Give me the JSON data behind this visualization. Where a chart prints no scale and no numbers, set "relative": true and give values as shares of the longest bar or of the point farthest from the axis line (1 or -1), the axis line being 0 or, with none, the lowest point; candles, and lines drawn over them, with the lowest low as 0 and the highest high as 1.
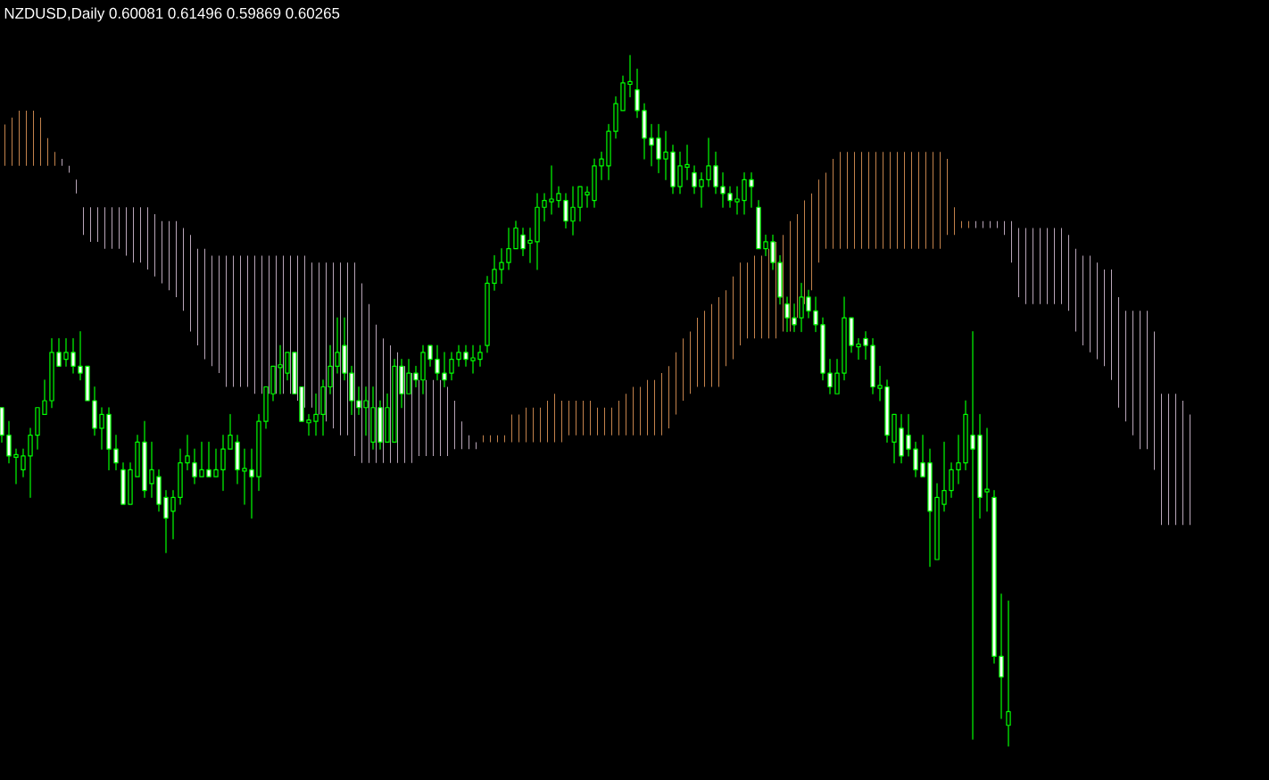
{
  "chart_data": {
    "type": "candlestick",
    "title": "NZDUSD,Daily  0.60081 0.61496 0.59869 0.60265",
    "relative": true,
    "categories": [
      null,
      null,
      null,
      null,
      null,
      null,
      null,
      null,
      null,
      null,
      null,
      null,
      null,
      null,
      null,
      null,
      null,
      null,
      null,
      null,
      null,
      null,
      null,
      null,
      null,
      null,
      null,
      null,
      null,
      null,
      null,
      null,
      null,
      null,
      null,
      null,
      null,
      null,
      null,
      null,
      null,
      null,
      null,
      null,
      null,
      null,
      null,
      null,
      null,
      null,
      null,
      null,
      null,
      null,
      null,
      null,
      null,
      null,
      null,
      null,
      null,
      null,
      null,
      null,
      null,
      null,
      null,
      null,
      null,
      null,
      null,
      null,
      null,
      null,
      null,
      null,
      null,
      null,
      null,
      null,
      null,
      null,
      null,
      null,
      null,
      null,
      null,
      null,
      null,
      null,
      null,
      null,
      null,
      null,
      null,
      null,
      null,
      null,
      null,
      null,
      null,
      null,
      null,
      null,
      null,
      null,
      null,
      null,
      null,
      null,
      null,
      null,
      null,
      null,
      null,
      null,
      null,
      null,
      null,
      null,
      null,
      null,
      null,
      null,
      null,
      null,
      null,
      null,
      null,
      null,
      null,
      null,
      null,
      null,
      null,
      null,
      null,
      null,
      null,
      null,
      null,
      null,
      null,
      null,
      null,
      null,
      null,
      null,
      null,
      null,
      null,
      null,
      null,
      null,
      null,
      null,
      null,
      null,
      null,
      null,
      null,
      null,
      null,
      null,
      null,
      null,
      null
    ],
    "series": [
      {
        "type": "bar",
        "color": "#f4a460",
        "values": [
          0.06,
          0.07,
          0.08,
          0.08,
          0.08,
          0.07,
          0.04,
          0.02,
          null,
          null,
          null,
          null,
          null,
          null,
          null,
          null,
          null,
          null,
          null,
          null,
          null,
          null,
          null,
          null,
          null,
          null,
          null,
          null,
          null,
          null,
          null,
          null,
          null,
          null,
          null,
          null,
          null,
          null,
          null,
          null,
          null,
          null,
          null,
          null,
          null,
          null,
          null,
          null,
          null,
          null,
          null,
          null,
          null,
          null,
          null,
          null,
          null,
          null,
          null,
          null,
          null,
          null,
          null,
          null,
          null,
          null,
          null,
          0.01,
          0.01,
          0.01,
          0.01,
          0.04,
          0.04,
          0.05,
          0.05,
          0.05,
          0.06,
          0.07,
          0.06,
          0.05,
          0.05,
          0.05,
          0.05,
          0.04,
          0.04,
          0.04,
          0.05,
          0.06,
          0.07,
          0.07,
          0.08,
          0.08,
          0.09,
          0.09,
          0.09,
          0.09,
          0.09,
          0.1,
          0.11,
          0.12,
          0.13,
          0.11,
          0.12,
          0.12,
          0.11,
          0.12,
          0.12,
          0.13,
          0.14,
          0.14,
          0.16,
          0.15,
          0.15,
          0.14,
          0.12,
          0.11,
          0.13,
          0.14,
          0.14,
          0.14,
          0.14,
          0.14,
          0.14,
          0.14,
          0.14,
          0.14,
          0.14,
          0.14,
          0.14,
          0.14,
          0.14,
          0.14,
          0.11,
          0.04,
          0.01,
          0.01,
          null,
          null,
          null,
          null,
          null,
          null,
          null,
          null,
          null,
          null,
          null,
          null,
          null,
          null,
          null,
          null,
          null,
          null,
          null,
          null,
          null,
          null,
          null,
          null,
          null,
          null,
          null,
          null,
          null,
          null,
          null
        ],
        "base": [
          0.84,
          0.84,
          0.84,
          0.84,
          0.84,
          0.84,
          0.84,
          0.84,
          null,
          null,
          null,
          null,
          null,
          null,
          null,
          null,
          null,
          null,
          null,
          null,
          null,
          null,
          null,
          null,
          null,
          null,
          null,
          null,
          null,
          null,
          null,
          null,
          null,
          null,
          null,
          null,
          null,
          null,
          null,
          null,
          null,
          null,
          null,
          null,
          null,
          null,
          null,
          null,
          null,
          null,
          null,
          null,
          null,
          null,
          null,
          null,
          null,
          null,
          null,
          null,
          null,
          null,
          null,
          null,
          null,
          null,
          null,
          0.44,
          0.44,
          0.44,
          0.44,
          0.44,
          0.44,
          0.44,
          0.44,
          0.44,
          0.44,
          0.44,
          0.44,
          0.45,
          0.45,
          0.45,
          0.45,
          0.45,
          0.45,
          0.45,
          0.45,
          0.45,
          0.45,
          0.45,
          0.45,
          0.45,
          0.45,
          0.46,
          0.48,
          0.5,
          0.51,
          0.52,
          0.52,
          0.52,
          0.52,
          0.55,
          0.56,
          0.58,
          0.59,
          0.59,
          0.59,
          0.59,
          0.59,
          0.6,
          0.6,
          0.62,
          0.64,
          0.66,
          0.7,
          0.72,
          0.72,
          0.72,
          0.72,
          0.72,
          0.72,
          0.72,
          0.72,
          0.72,
          0.72,
          0.72,
          0.72,
          0.72,
          0.72,
          0.72,
          0.72,
          0.72,
          0.74,
          0.74,
          0.75,
          0.75,
          null,
          null,
          null,
          null,
          null,
          null,
          null,
          null,
          null,
          null,
          null,
          null,
          null,
          null,
          null,
          null,
          null,
          null,
          null,
          null,
          null,
          null,
          null,
          null,
          null,
          null,
          null,
          null,
          null,
          null,
          null
        ]
      },
      {
        "type": "bar",
        "color": "#e8d0e8",
        "values": [
          null,
          null,
          null,
          null,
          null,
          null,
          null,
          null,
          0.01,
          0.01,
          0.02,
          0.04,
          0.05,
          0.05,
          0.06,
          0.06,
          0.06,
          0.07,
          0.08,
          0.08,
          0.09,
          0.09,
          0.09,
          0.1,
          0.11,
          0.12,
          0.14,
          0.14,
          0.16,
          0.16,
          0.17,
          0.19,
          0.19,
          0.19,
          0.19,
          0.2,
          0.2,
          0.2,
          0.2,
          0.2,
          0.2,
          0.21,
          0.22,
          0.21,
          0.22,
          0.23,
          0.24,
          0.25,
          0.25,
          0.28,
          0.26,
          0.23,
          0.2,
          0.18,
          0.17,
          0.16,
          0.14,
          0.13,
          0.11,
          0.11,
          0.11,
          0.11,
          0.1,
          0.07,
          0.04,
          0.02,
          0.01,
          null,
          null,
          null,
          null,
          null,
          null,
          null,
          null,
          null,
          null,
          null,
          null,
          null,
          null,
          null,
          null,
          null,
          null,
          null,
          null,
          null,
          null,
          null,
          null,
          null,
          null,
          null,
          null,
          null,
          null,
          null,
          null,
          null,
          null,
          null,
          null,
          null,
          null,
          null,
          null,
          null,
          null,
          null,
          null,
          null,
          null,
          null,
          null,
          null,
          null,
          null,
          null,
          null,
          null,
          null,
          null,
          null,
          null,
          null,
          null,
          null,
          null,
          null,
          null,
          null,
          null,
          null,
          null,
          null,
          0.01,
          0.01,
          0.01,
          0.01,
          0.02,
          0.06,
          0.1,
          0.11,
          0.11,
          0.11,
          0.11,
          0.11,
          0.11,
          0.11,
          0.12,
          0.13,
          0.14,
          0.14,
          0.14,
          0.16,
          0.16,
          0.16,
          0.18,
          0.2,
          0.2,
          0.2,
          0.19,
          0.19,
          0.19,
          0.18,
          0.16
        ],
        "base": [
          null,
          null,
          null,
          null,
          null,
          null,
          null,
          null,
          0.84,
          0.83,
          0.8,
          0.74,
          0.73,
          0.73,
          0.72,
          0.72,
          0.72,
          0.71,
          0.7,
          0.7,
          0.69,
          0.68,
          0.67,
          0.66,
          0.65,
          0.63,
          0.6,
          0.58,
          0.56,
          0.55,
          0.54,
          0.52,
          0.52,
          0.52,
          0.52,
          0.51,
          0.51,
          0.51,
          0.51,
          0.51,
          0.51,
          0.5,
          0.49,
          0.49,
          0.48,
          0.47,
          0.46,
          0.45,
          0.45,
          0.42,
          0.41,
          0.41,
          0.41,
          0.41,
          0.41,
          0.41,
          0.41,
          0.41,
          0.42,
          0.42,
          0.42,
          0.42,
          0.42,
          0.43,
          0.43,
          0.43,
          0.43,
          null,
          null,
          null,
          null,
          null,
          null,
          null,
          null,
          null,
          null,
          null,
          null,
          null,
          null,
          null,
          null,
          null,
          null,
          null,
          null,
          null,
          null,
          null,
          null,
          null,
          null,
          null,
          null,
          null,
          null,
          null,
          null,
          null,
          null,
          null,
          null,
          null,
          null,
          null,
          null,
          null,
          null,
          null,
          null,
          null,
          null,
          null,
          null,
          null,
          null,
          null,
          null,
          null,
          null,
          null,
          null,
          null,
          null,
          null,
          null,
          null,
          null,
          null,
          null,
          null,
          null,
          null,
          null,
          null,
          0.75,
          0.75,
          0.75,
          0.75,
          0.74,
          0.7,
          0.65,
          0.64,
          0.64,
          0.64,
          0.64,
          0.64,
          0.64,
          0.63,
          0.6,
          0.58,
          0.57,
          0.56,
          0.55,
          0.53,
          0.49,
          0.47,
          0.45,
          0.43,
          0.43,
          0.4,
          0.32,
          0.32,
          0.32,
          0.32,
          0.32
        ]
      },
      {
        "type": "candlestick",
        "color": "#00ff00",
        "ohlc": [
          [
            0.49,
            0.49,
            0.44,
            0.45
          ],
          [
            0.45,
            0.47,
            0.41,
            0.42
          ],
          [
            0.42,
            0.43,
            0.38,
            0.42
          ],
          [
            0.4,
            0.43,
            0.39,
            0.42
          ],
          [
            0.42,
            0.46,
            0.36,
            0.45
          ],
          [
            0.45,
            0.49,
            0.43,
            0.49
          ],
          [
            0.48,
            0.53,
            0.48,
            0.5
          ],
          [
            0.5,
            0.59,
            0.49,
            0.57
          ],
          [
            0.57,
            0.59,
            0.55,
            0.55
          ],
          [
            0.56,
            0.59,
            0.55,
            0.57
          ],
          [
            0.57,
            0.59,
            0.54,
            0.55
          ],
          [
            0.55,
            0.6,
            0.53,
            0.54
          ],
          [
            0.55,
            0.55,
            0.5,
            0.5
          ],
          [
            0.5,
            0.52,
            0.45,
            0.46
          ],
          [
            0.46,
            0.49,
            0.43,
            0.48
          ],
          [
            0.48,
            0.49,
            0.4,
            0.43
          ],
          [
            0.43,
            0.45,
            0.4,
            0.41
          ],
          [
            0.4,
            0.41,
            0.35,
            0.35
          ],
          [
            0.35,
            0.41,
            0.35,
            0.4
          ],
          [
            0.39,
            0.45,
            0.39,
            0.44
          ],
          [
            0.44,
            0.47,
            0.36,
            0.37
          ],
          [
            0.38,
            0.44,
            0.36,
            0.4
          ],
          [
            0.39,
            0.4,
            0.34,
            0.35
          ],
          [
            0.36,
            0.37,
            0.28,
            0.33
          ],
          [
            0.34,
            0.37,
            0.3,
            0.36
          ],
          [
            0.36,
            0.43,
            0.35,
            0.41
          ],
          [
            0.41,
            0.45,
            0.4,
            0.42
          ],
          [
            0.41,
            0.43,
            0.38,
            0.39
          ],
          [
            0.39,
            0.44,
            0.39,
            0.4
          ],
          [
            0.4,
            0.44,
            0.39,
            0.39
          ],
          [
            0.39,
            0.43,
            0.39,
            0.4
          ],
          [
            0.4,
            0.45,
            0.37,
            0.43
          ],
          [
            0.43,
            0.48,
            0.43,
            0.45
          ],
          [
            0.44,
            0.45,
            0.38,
            0.4
          ],
          [
            0.4,
            0.43,
            0.35,
            0.4
          ],
          [
            0.4,
            0.43,
            0.33,
            0.39
          ],
          [
            0.39,
            0.48,
            0.37,
            0.47
          ],
          [
            0.47,
            0.52,
            0.46,
            0.52
          ],
          [
            0.51,
            0.55,
            0.5,
            0.55
          ],
          [
            0.55,
            0.58,
            0.51,
            0.55
          ],
          [
            0.54,
            0.57,
            0.53,
            0.57
          ],
          [
            0.57,
            0.57,
            0.51,
            0.51
          ],
          [
            0.52,
            0.52,
            0.47,
            0.47
          ],
          [
            0.47,
            0.48,
            0.45,
            0.47
          ],
          [
            0.47,
            0.51,
            0.45,
            0.48
          ],
          [
            0.48,
            0.53,
            0.45,
            0.52
          ],
          [
            0.52,
            0.58,
            0.51,
            0.55
          ],
          [
            0.55,
            0.62,
            0.54,
            0.57
          ],
          [
            0.58,
            0.62,
            0.53,
            0.54
          ],
          [
            0.54,
            0.55,
            0.48,
            0.5
          ],
          [
            0.5,
            0.52,
            0.48,
            0.49
          ],
          [
            0.49,
            0.52,
            0.45,
            0.5
          ],
          [
            0.44,
            0.52,
            0.43,
            0.49
          ],
          [
            0.49,
            0.5,
            0.43,
            0.44
          ],
          [
            0.44,
            0.51,
            0.44,
            0.49
          ],
          [
            0.44,
            0.56,
            0.44,
            0.55
          ],
          [
            0.55,
            0.56,
            0.49,
            0.51
          ],
          [
            0.51,
            0.56,
            0.51,
            0.54
          ],
          [
            0.54,
            0.55,
            0.52,
            0.53
          ],
          [
            0.53,
            0.58,
            0.51,
            0.57
          ],
          [
            0.58,
            0.58,
            0.55,
            0.56
          ],
          [
            0.56,
            0.58,
            0.53,
            0.54
          ],
          [
            0.54,
            0.57,
            0.52,
            0.53
          ],
          [
            0.54,
            0.57,
            0.53,
            0.56
          ],
          [
            0.56,
            0.58,
            0.55,
            0.57
          ],
          [
            0.57,
            0.58,
            0.55,
            0.56
          ],
          [
            0.56,
            0.58,
            0.54,
            0.56
          ],
          [
            0.56,
            0.58,
            0.55,
            0.57
          ],
          [
            0.58,
            0.68,
            0.57,
            0.67
          ],
          [
            0.67,
            0.71,
            0.66,
            0.69
          ],
          [
            0.69,
            0.72,
            0.67,
            0.7
          ],
          [
            0.7,
            0.75,
            0.69,
            0.72
          ],
          [
            0.72,
            0.76,
            0.72,
            0.75
          ],
          [
            0.74,
            0.75,
            0.71,
            0.72
          ],
          [
            0.73,
            0.75,
            0.7,
            0.73
          ],
          [
            0.73,
            0.8,
            0.69,
            0.78
          ],
          [
            0.78,
            0.8,
            0.76,
            0.79
          ],
          [
            0.79,
            0.84,
            0.77,
            0.79
          ],
          [
            0.79,
            0.81,
            0.78,
            0.8
          ],
          [
            0.79,
            0.8,
            0.75,
            0.76
          ],
          [
            0.76,
            0.81,
            0.74,
            0.78
          ],
          [
            0.78,
            0.81,
            0.76,
            0.81
          ],
          [
            0.8,
            0.81,
            0.78,
            0.8
          ],
          [
            0.79,
            0.85,
            0.78,
            0.84
          ],
          [
            0.84,
            0.86,
            0.82,
            0.85
          ],
          [
            0.84,
            0.9,
            0.82,
            0.89
          ],
          [
            0.89,
            0.94,
            0.88,
            0.93
          ],
          [
            0.92,
            0.97,
            0.92,
            0.96
          ],
          [
            0.96,
            1,
            0.94,
            0.96
          ],
          [
            0.95,
            0.98,
            0.91,
            0.92
          ],
          [
            0.92,
            0.93,
            0.85,
            0.88
          ],
          [
            0.88,
            0.9,
            0.84,
            0.87
          ],
          [
            0.88,
            0.9,
            0.83,
            0.85
          ],
          [
            0.85,
            0.89,
            0.82,
            0.86
          ],
          [
            0.86,
            0.87,
            0.8,
            0.81
          ],
          [
            0.81,
            0.86,
            0.8,
            0.84
          ],
          [
            0.84,
            0.87,
            0.82,
            0.84
          ],
          [
            0.83,
            0.84,
            0.8,
            0.81
          ],
          [
            0.81,
            0.83,
            0.78,
            0.82
          ],
          [
            0.82,
            0.88,
            0.81,
            0.84
          ],
          [
            0.84,
            0.86,
            0.8,
            0.81
          ],
          [
            0.81,
            0.83,
            0.78,
            0.8
          ],
          [
            0.8,
            0.81,
            0.78,
            0.79
          ],
          [
            0.79,
            0.81,
            0.77,
            0.79
          ],
          [
            0.79,
            0.83,
            0.77,
            0.82
          ],
          [
            0.82,
            0.83,
            0.78,
            0.81
          ],
          [
            0.78,
            0.79,
            0.72,
            0.72
          ],
          [
            0.72,
            0.74,
            0.71,
            0.73
          ],
          [
            0.73,
            0.74,
            0.69,
            0.7
          ],
          [
            0.7,
            0.71,
            0.64,
            0.65
          ],
          [
            0.64,
            0.65,
            0.6,
            0.62
          ],
          [
            0.62,
            0.64,
            0.6,
            0.61
          ],
          [
            0.62,
            0.67,
            0.6,
            0.65
          ],
          [
            0.65,
            0.66,
            0.62,
            0.63
          ],
          [
            0.63,
            0.65,
            0.6,
            0.61
          ],
          [
            0.61,
            0.62,
            0.53,
            0.54
          ],
          [
            0.54,
            0.56,
            0.51,
            0.52
          ],
          [
            0.51,
            0.56,
            0.51,
            0.54
          ],
          [
            0.54,
            0.65,
            0.53,
            0.62
          ],
          [
            0.62,
            0.62,
            0.57,
            0.58
          ],
          [
            0.58,
            0.59,
            0.56,
            0.58
          ],
          [
            0.59,
            0.6,
            0.56,
            0.58
          ],
          [
            0.58,
            0.59,
            0.51,
            0.52
          ],
          [
            0.52,
            0.55,
            0.5,
            0.52
          ],
          [
            0.52,
            0.53,
            0.44,
            0.45
          ],
          [
            0.44,
            0.48,
            0.41,
            0.48
          ],
          [
            0.46,
            0.48,
            0.41,
            0.42
          ],
          [
            0.45,
            0.48,
            0.42,
            0.43
          ],
          [
            0.43,
            0.44,
            0.39,
            0.4
          ],
          [
            0.41,
            0.45,
            0.39,
            0.39
          ],
          [
            0.41,
            0.43,
            0.26,
            0.34
          ],
          [
            0.27,
            0.38,
            0.27,
            0.36
          ],
          [
            0.35,
            0.44,
            0.34,
            0.37
          ],
          [
            0.37,
            0.41,
            0.36,
            0.4
          ],
          [
            0.4,
            0.45,
            0.38,
            0.41
          ],
          [
            0.41,
            0.5,
            0.4,
            0.48
          ],
          [
            0.45,
            0.6,
            0.01,
            0.43
          ],
          [
            0.45,
            0.48,
            0.33,
            0.36
          ],
          [
            0.37,
            0.46,
            0.34,
            0.37
          ],
          [
            0.36,
            0.37,
            0.12,
            0.13
          ],
          [
            0.13,
            0.22,
            0.04,
            0.1
          ],
          [
            0.03,
            0.21,
            0,
            0.05
          ],
          null,
          null,
          null,
          null,
          null,
          null,
          null,
          null,
          null,
          null,
          null,
          null,
          null,
          null,
          null,
          null,
          null,
          null,
          null,
          null,
          null,
          null,
          null,
          null,
          null
        ]
      }
    ]
  }
}
